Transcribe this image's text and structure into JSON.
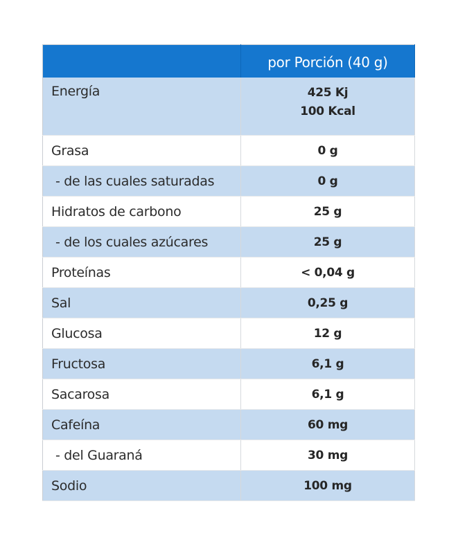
{
  "table": {
    "header": {
      "label_column": "",
      "value_column": "por Porción (40 g)"
    },
    "colors": {
      "header_bg": "#1577cf",
      "header_text": "#ffffff",
      "shaded_row": "#c5daf0",
      "plain_row": "#ffffff"
    },
    "rows": [
      {
        "label": "Energía",
        "value_lines": [
          "425 Kj",
          "100 Kcal"
        ],
        "shaded": true
      },
      {
        "label": "Grasa",
        "value": "0 g",
        "shaded": false
      },
      {
        "label": " - de las cuales saturadas",
        "value": "0 g",
        "shaded": true,
        "sub": true
      },
      {
        "label": "Hidratos de carbono",
        "value": "25 g",
        "shaded": false
      },
      {
        "label": " - de los cuales azúcares",
        "value": "25 g",
        "shaded": true,
        "sub": true
      },
      {
        "label": "Proteínas",
        "value": "< 0,04 g",
        "shaded": false
      },
      {
        "label": "Sal",
        "value": "0,25 g",
        "shaded": true
      },
      {
        "label": "Glucosa",
        "value": "12 g",
        "shaded": false
      },
      {
        "label": "Fructosa",
        "value": "6,1 g",
        "shaded": true
      },
      {
        "label": "Sacarosa",
        "value": "6,1 g",
        "shaded": false
      },
      {
        "label": "Cafeína",
        "value": "60 mg",
        "shaded": true
      },
      {
        "label": " - del Guaraná",
        "value": "30 mg",
        "shaded": false,
        "sub": true
      },
      {
        "label": "Sodio",
        "value": "100 mg",
        "shaded": true
      }
    ]
  }
}
